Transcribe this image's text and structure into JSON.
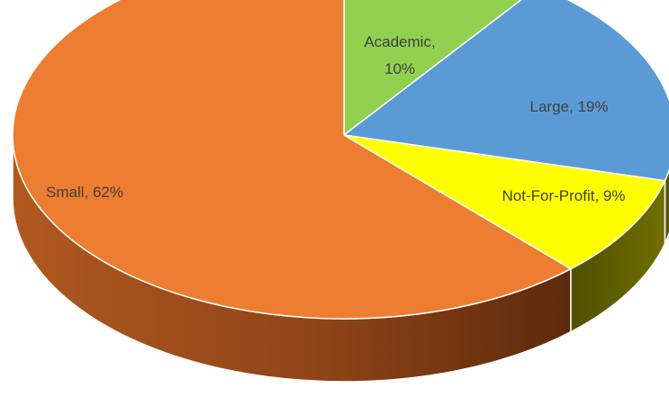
{
  "chart_data": {
    "type": "pie",
    "style": "3d",
    "slices": [
      {
        "label": "Academic, 10%",
        "name": "Academic",
        "value": 10,
        "color": "#92d050",
        "side_color": "#5a8a2a"
      },
      {
        "label": "Large, 19%",
        "name": "Large",
        "value": 19,
        "color": "#5b9bd5",
        "side_color": "#2f5f8f"
      },
      {
        "label": "Not-For-Profit, 9%",
        "name": "Not-For-Profit",
        "value": 9,
        "color": "#ffff00",
        "side_color": "#6b6b00"
      },
      {
        "label": "Small, 62%",
        "name": "Small",
        "value": 62,
        "color": "#ed7d31",
        "side_color": "#8b4513"
      }
    ],
    "title": "",
    "legend": "none"
  }
}
